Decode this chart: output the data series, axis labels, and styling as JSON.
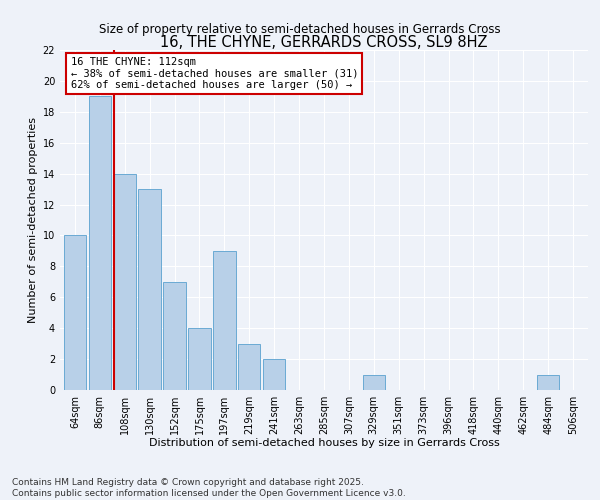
{
  "title": "16, THE CHYNE, GERRARDS CROSS, SL9 8HZ",
  "subtitle": "Size of property relative to semi-detached houses in Gerrards Cross",
  "xlabel": "Distribution of semi-detached houses by size in Gerrards Cross",
  "ylabel": "Number of semi-detached properties",
  "categories": [
    "64sqm",
    "86sqm",
    "108sqm",
    "130sqm",
    "152sqm",
    "175sqm",
    "197sqm",
    "219sqm",
    "241sqm",
    "263sqm",
    "285sqm",
    "307sqm",
    "329sqm",
    "351sqm",
    "373sqm",
    "396sqm",
    "418sqm",
    "440sqm",
    "462sqm",
    "484sqm",
    "506sqm"
  ],
  "values": [
    10,
    19,
    14,
    13,
    7,
    4,
    9,
    3,
    2,
    0,
    0,
    0,
    1,
    0,
    0,
    0,
    0,
    0,
    0,
    1,
    0
  ],
  "bar_color": "#b8d0e8",
  "bar_edge_color": "#6aaad4",
  "property_line_index": 2,
  "property_label": "16 THE CHYNE: 112sqm",
  "annotation_line1": "← 38% of semi-detached houses are smaller (31)",
  "annotation_line2": "62% of semi-detached houses are larger (50) →",
  "annotation_box_color": "#ffffff",
  "annotation_box_edge_color": "#cc0000",
  "line_color": "#cc0000",
  "ylim": [
    0,
    22
  ],
  "yticks": [
    0,
    2,
    4,
    6,
    8,
    10,
    12,
    14,
    16,
    18,
    20,
    22
  ],
  "footer_line1": "Contains HM Land Registry data © Crown copyright and database right 2025.",
  "footer_line2": "Contains public sector information licensed under the Open Government Licence v3.0.",
  "background_color": "#eef2f9",
  "title_fontsize": 10.5,
  "subtitle_fontsize": 8.5,
  "xlabel_fontsize": 8,
  "ylabel_fontsize": 8,
  "tick_fontsize": 7,
  "annotation_fontsize": 7.5,
  "footer_fontsize": 6.5
}
